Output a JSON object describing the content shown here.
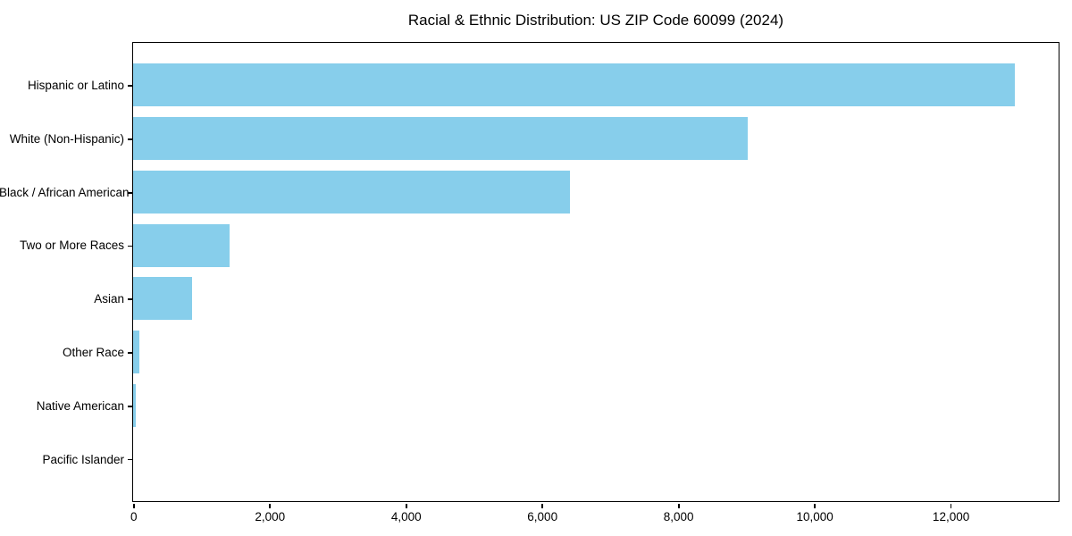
{
  "chart_data": {
    "type": "bar",
    "orientation": "horizontal",
    "title": "Racial & Ethnic Distribution: US ZIP Code 60099 (2024)",
    "categories": [
      "Hispanic or Latino",
      "White (Non-Hispanic)",
      "Black / African American",
      "Two or More Races",
      "Asian",
      "Other Race",
      "Native American",
      "Pacific Islander"
    ],
    "values": [
      12950,
      9020,
      6410,
      1420,
      870,
      90,
      40,
      0
    ],
    "xlabel": "",
    "ylabel": "",
    "xlim": [
      0,
      13590
    ],
    "xticks": [
      0,
      2000,
      4000,
      6000,
      8000,
      10000,
      12000
    ],
    "xtick_labels": [
      "0",
      "2,000",
      "4,000",
      "6,000",
      "8,000",
      "10,000",
      "12,000"
    ],
    "bar_color": "#87CEEB",
    "axis_color": "#000000",
    "background_color": "#FFFFFF",
    "grid": false,
    "legend": null
  }
}
